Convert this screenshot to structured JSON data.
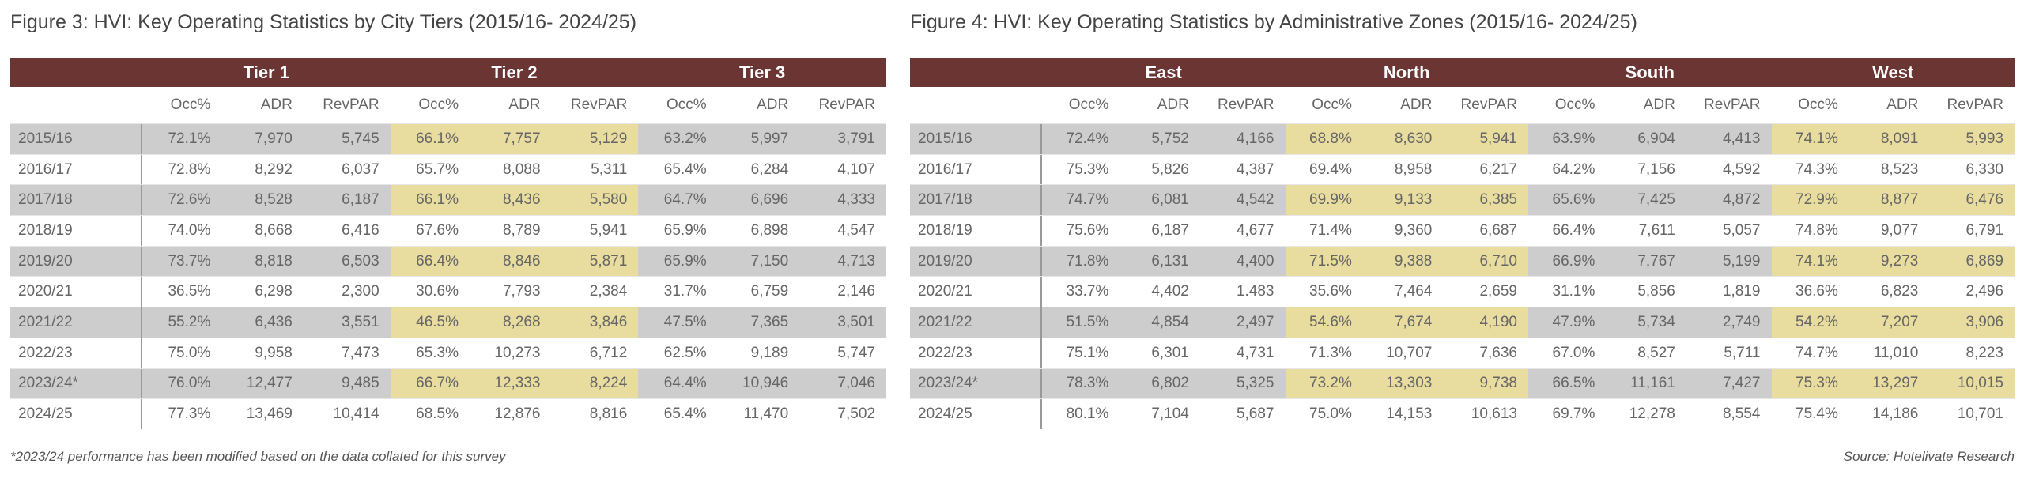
{
  "colors": {
    "header": "#6b3534",
    "shade_gray": "#cdcdcd",
    "shade_yellow": "#e8dc9e"
  },
  "left": {
    "title": "Figure 3: HVI: Key Operating Statistics by City Tiers (2015/16- 2024/25)",
    "groups": [
      "Tier 1",
      "Tier 2",
      "Tier 3"
    ],
    "group_shades": [
      "gray",
      "yellow",
      "gray"
    ],
    "metrics": [
      "Occ%",
      "ADR",
      "RevPAR"
    ],
    "rows": [
      {
        "year": "2015/16",
        "values": [
          "72.1%",
          "7,970",
          "5,745",
          "66.1%",
          "7,757",
          "5,129",
          "63.2%",
          "5,997",
          "3,791"
        ]
      },
      {
        "year": "2016/17",
        "values": [
          "72.8%",
          "8,292",
          "6,037",
          "65.7%",
          "8,088",
          "5,311",
          "65.4%",
          "6,284",
          "4,107"
        ]
      },
      {
        "year": "2017/18",
        "values": [
          "72.6%",
          "8,528",
          "6,187",
          "66.1%",
          "8,436",
          "5,580",
          "64.7%",
          "6,696",
          "4,333"
        ]
      },
      {
        "year": "2018/19",
        "values": [
          "74.0%",
          "8,668",
          "6,416",
          "67.6%",
          "8,789",
          "5,941",
          "65.9%",
          "6,898",
          "4,547"
        ]
      },
      {
        "year": "2019/20",
        "values": [
          "73.7%",
          "8,818",
          "6,503",
          "66.4%",
          "8,846",
          "5,871",
          "65.9%",
          "7,150",
          "4,713"
        ]
      },
      {
        "year": "2020/21",
        "values": [
          "36.5%",
          "6,298",
          "2,300",
          "30.6%",
          "7,793",
          "2,384",
          "31.7%",
          "6,759",
          "2,146"
        ]
      },
      {
        "year": "2021/22",
        "values": [
          "55.2%",
          "6,436",
          "3,551",
          "46.5%",
          "8,268",
          "3,846",
          "47.5%",
          "7,365",
          "3,501"
        ]
      },
      {
        "year": "2022/23",
        "values": [
          "75.0%",
          "9,958",
          "7,473",
          "65.3%",
          "10,273",
          "6,712",
          "62.5%",
          "9,189",
          "5,747"
        ]
      },
      {
        "year": "2023/24*",
        "values": [
          "76.0%",
          "12,477",
          "9,485",
          "66.7%",
          "12,333",
          "8,224",
          "64.4%",
          "10,946",
          "7,046"
        ]
      },
      {
        "year": "2024/25",
        "values": [
          "77.3%",
          "13,469",
          "10,414",
          "68.5%",
          "12,876",
          "8,816",
          "65.4%",
          "11,470",
          "7,502"
        ]
      }
    ],
    "footnote": "*2023/24 performance has been modified based on the data collated for this survey"
  },
  "right": {
    "title": "Figure 4: HVI: Key Operating Statistics by Administrative Zones (2015/16- 2024/25)",
    "groups": [
      "East",
      "North",
      "South",
      "West"
    ],
    "group_shades": [
      "gray",
      "yellow",
      "gray",
      "yellow"
    ],
    "metrics": [
      "Occ%",
      "ADR",
      "RevPAR"
    ],
    "rows": [
      {
        "year": "2015/16",
        "values": [
          "72.4%",
          "5,752",
          "4,166",
          "68.8%",
          "8,630",
          "5,941",
          "63.9%",
          "6,904",
          "4,413",
          "74.1%",
          "8,091",
          "5,993"
        ]
      },
      {
        "year": "2016/17",
        "values": [
          "75.3%",
          "5,826",
          "4,387",
          "69.4%",
          "8,958",
          "6,217",
          "64.2%",
          "7,156",
          "4,592",
          "74.3%",
          "8,523",
          "6,330"
        ]
      },
      {
        "year": "2017/18",
        "values": [
          "74.7%",
          "6,081",
          "4,542",
          "69.9%",
          "9,133",
          "6,385",
          "65.6%",
          "7,425",
          "4,872",
          "72.9%",
          "8,877",
          "6,476"
        ]
      },
      {
        "year": "2018/19",
        "values": [
          "75.6%",
          "6,187",
          "4,677",
          "71.4%",
          "9,360",
          "6,687",
          "66.4%",
          "7,611",
          "5,057",
          "74.8%",
          "9,077",
          "6,791"
        ]
      },
      {
        "year": "2019/20",
        "values": [
          "71.8%",
          "6,131",
          "4,400",
          "71.5%",
          "9,388",
          "6,710",
          "66.9%",
          "7,767",
          "5,199",
          "74.1%",
          "9,273",
          "6,869"
        ]
      },
      {
        "year": "2020/21",
        "values": [
          "33.7%",
          "4,402",
          "1.483",
          "35.6%",
          "7,464",
          "2,659",
          "31.1%",
          "5,856",
          "1,819",
          "36.6%",
          "6,823",
          "2,496"
        ]
      },
      {
        "year": "2021/22",
        "values": [
          "51.5%",
          "4,854",
          "2,497",
          "54.6%",
          "7,674",
          "4,190",
          "47.9%",
          "5,734",
          "2,749",
          "54.2%",
          "7,207",
          "3,906"
        ]
      },
      {
        "year": "2022/23",
        "values": [
          "75.1%",
          "6,301",
          "4,731",
          "71.3%",
          "10,707",
          "7,636",
          "67.0%",
          "8,527",
          "5,711",
          "74.7%",
          "11,010",
          "8,223"
        ]
      },
      {
        "year": "2023/24*",
        "values": [
          "78.3%",
          "6,802",
          "5,325",
          "73.2%",
          "13,303",
          "9,738",
          "66.5%",
          "11,161",
          "7,427",
          "75.3%",
          "13,297",
          "10,015"
        ]
      },
      {
        "year": "2024/25",
        "values": [
          "80.1%",
          "7,104",
          "5,687",
          "75.0%",
          "14,153",
          "10,613",
          "69.7%",
          "12,278",
          "8,554",
          "75.4%",
          "14,186",
          "10,701"
        ]
      }
    ],
    "source": "Source: Hotelivate Research"
  }
}
